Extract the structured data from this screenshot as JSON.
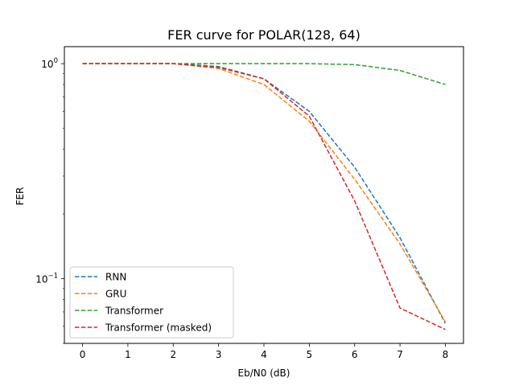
{
  "chart_data": {
    "type": "line",
    "title": "FER curve for POLAR(128, 64)",
    "xlabel": "Eb/N0 (dB)",
    "ylabel": "FER",
    "yscale": "log",
    "x": [
      0,
      1,
      2,
      3,
      4,
      5,
      6,
      7,
      8
    ],
    "xlim": [
      -0.4,
      8.4
    ],
    "ylim": [
      0.05,
      1.2
    ],
    "xticks": [
      "0",
      "1",
      "2",
      "3",
      "4",
      "5",
      "6",
      "7",
      "8"
    ],
    "yticks": [
      {
        "value": 1,
        "base": "10",
        "exp": "0"
      },
      {
        "value": 0.1,
        "base": "10",
        "exp": "−1"
      }
    ],
    "grid": false,
    "legend_position": "lower-left",
    "series": [
      {
        "name": "RNN",
        "color": "#1f77b4",
        "linestyle": "dashed",
        "values": [
          1.0,
          1.0,
          1.0,
          0.97,
          0.85,
          0.6,
          0.33,
          0.155,
          0.062
        ]
      },
      {
        "name": "GRU",
        "color": "#ff7f0e",
        "linestyle": "dashed",
        "values": [
          1.0,
          1.0,
          1.0,
          0.95,
          0.8,
          0.54,
          0.29,
          0.145,
          0.063
        ]
      },
      {
        "name": "Transformer",
        "color": "#2ca02c",
        "linestyle": "dashed",
        "values": [
          1.0,
          1.0,
          1.0,
          1.0,
          1.0,
          1.0,
          0.99,
          0.93,
          0.8
        ]
      },
      {
        "name": "Transformer (masked)",
        "color": "#d62728",
        "linestyle": "dashed",
        "values": [
          1.0,
          1.0,
          1.0,
          0.96,
          0.85,
          0.57,
          0.23,
          0.073,
          0.058
        ]
      }
    ]
  }
}
